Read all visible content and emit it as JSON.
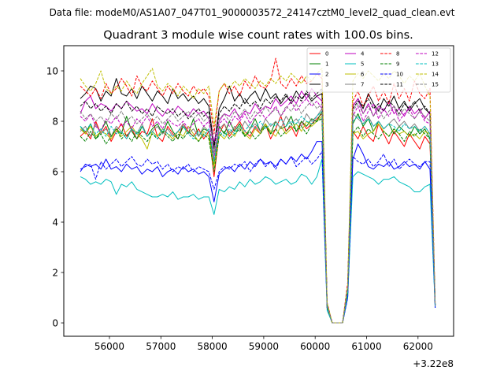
{
  "header": {
    "file_label": "Data file: modeM0/AS1A07_047T01_9000003572_24147cztM0_level2_quad_clean.evt"
  },
  "chart_data": {
    "type": "line",
    "title": "Quadrant 3 module wise count rates with 100.0s bins.",
    "xlabel": "",
    "ylabel": "",
    "x_offset_label": "+3.22e8",
    "xlim": [
      55112,
      62692
    ],
    "ylim": [
      -0.53,
      11.0
    ],
    "x_start": 55433,
    "x_step": 100,
    "xticks": [
      56000,
      57000,
      58000,
      59000,
      60000,
      61000,
      62000
    ],
    "yticks": [
      0,
      2,
      4,
      6,
      8,
      10
    ],
    "legend_position": "top-right",
    "grid": false,
    "series": [
      {
        "name": "0",
        "color": "#ff0000",
        "dash": false,
        "values": [
          7.4,
          7.6,
          7.3,
          8.0,
          7.5,
          7.8,
          7.2,
          7.6,
          7.9,
          7.4,
          7.7,
          7.3,
          7.6,
          7.5,
          8.1,
          7.4,
          7.2,
          7.8,
          7.5,
          7.3,
          7.9,
          7.6,
          7.4,
          7.7,
          7.3,
          7.6,
          5.8,
          7.5,
          7.9,
          7.4,
          7.7,
          8.0,
          7.6,
          7.4,
          7.8,
          7.5,
          7.9,
          7.3,
          7.7,
          8.2,
          7.6,
          7.8,
          7.4,
          8.0,
          7.7,
          7.9,
          8.1,
          8.3,
          0.6,
          0,
          0,
          0,
          1.2,
          7.6,
          7.3,
          7.8,
          7.4,
          7.2,
          7.9,
          7.5,
          7.1,
          7.6,
          7.3,
          7.0,
          7.5,
          7.2,
          6.9,
          7.4,
          7.1,
          0.7
        ]
      },
      {
        "name": "1",
        "color": "#008000",
        "dash": false,
        "values": [
          7.8,
          7.5,
          7.9,
          7.3,
          7.6,
          8.0,
          7.4,
          7.7,
          7.5,
          8.2,
          7.6,
          7.3,
          7.8,
          7.4,
          7.7,
          7.9,
          7.5,
          8.0,
          7.6,
          7.3,
          7.8,
          7.5,
          8.1,
          7.4,
          7.7,
          7.6,
          6.3,
          7.8,
          7.5,
          8.0,
          7.6,
          7.9,
          7.4,
          7.7,
          8.1,
          7.6,
          7.9,
          7.5,
          8.0,
          7.7,
          7.8,
          8.2,
          7.6,
          8.0,
          7.8,
          8.1,
          8.0,
          8.4,
          0.6,
          0,
          0,
          0,
          1.3,
          7.9,
          8.3,
          7.8,
          8.1,
          7.6,
          8.0,
          7.7,
          7.9,
          7.5,
          7.8,
          7.6,
          7.4,
          7.8,
          7.5,
          7.7,
          7.3,
          0.7
        ]
      },
      {
        "name": "2",
        "color": "#0000ff",
        "dash": false,
        "values": [
          6.0,
          6.3,
          6.2,
          6.3,
          6.1,
          6.5,
          6.1,
          6.2,
          6.0,
          6.3,
          6.1,
          6.2,
          5.9,
          6.1,
          6.0,
          6.2,
          5.8,
          6.0,
          6.1,
          5.9,
          6.2,
          6.0,
          6.1,
          5.9,
          6.0,
          5.8,
          4.8,
          5.9,
          6.1,
          6.2,
          6.0,
          6.3,
          6.1,
          6.4,
          6.2,
          6.5,
          6.3,
          6.4,
          6.2,
          6.5,
          6.3,
          6.6,
          6.4,
          6.7,
          6.5,
          6.8,
          7.2,
          7.2,
          0.6,
          0,
          0,
          0,
          1.0,
          6.5,
          7.1,
          6.7,
          6.2,
          6.1,
          6.3,
          6.2,
          6.4,
          6.1,
          6.2,
          6.4,
          6.2,
          6.3,
          6.1,
          6.4,
          6.1,
          0.6
        ]
      },
      {
        "name": "3",
        "color": "#000000",
        "dash": false,
        "values": [
          8.9,
          9.1,
          9.4,
          9.3,
          8.8,
          9.2,
          9.0,
          9.7,
          9.1,
          9.0,
          9.3,
          8.9,
          9.4,
          9.1,
          8.8,
          9.2,
          9.0,
          8.7,
          9.3,
          8.9,
          9.1,
          8.8,
          9.0,
          8.7,
          8.9,
          8.6,
          7.0,
          8.5,
          8.9,
          9.4,
          8.8,
          9.1,
          8.7,
          9.0,
          9.2,
          8.8,
          9.3,
          8.9,
          9.1,
          8.7,
          9.0,
          8.8,
          9.2,
          8.9,
          9.1,
          8.8,
          9.0,
          9.1,
          0.7,
          0,
          0,
          0,
          1.4,
          8.6,
          8.9,
          8.5,
          9.1,
          8.7,
          8.4,
          8.9,
          8.6,
          9.0,
          8.5,
          8.8,
          8.4,
          8.7,
          8.9,
          8.5,
          8.3,
          0.7
        ]
      },
      {
        "name": "4",
        "color": "#bf00bf",
        "dash": false,
        "values": [
          8.3,
          8.8,
          9.0,
          8.5,
          8.7,
          8.6,
          8.4,
          8.7,
          8.5,
          8.8,
          8.6,
          8.4,
          8.5,
          8.3,
          8.7,
          8.4,
          8.2,
          8.5,
          8.3,
          8.6,
          8.4,
          8.2,
          8.5,
          8.3,
          8.4,
          8.1,
          7.2,
          8.0,
          8.3,
          8.2,
          8.5,
          8.1,
          8.4,
          8.3,
          8.7,
          8.4,
          8.6,
          8.5,
          8.9,
          8.6,
          8.8,
          9.0,
          8.7,
          9.2,
          8.9,
          9.3,
          9.0,
          8.8,
          0.7,
          0,
          0,
          0,
          1.3,
          8.6,
          8.9,
          8.3,
          8.7,
          8.2,
          8.6,
          8.4,
          8.8,
          8.3,
          8.5,
          8.2,
          8.6,
          8.3,
          8.5,
          8.1,
          8.4,
          0.7
        ]
      },
      {
        "name": "5",
        "color": "#00bfbf",
        "dash": false,
        "values": [
          5.8,
          5.7,
          5.5,
          5.6,
          5.5,
          5.7,
          5.6,
          5.1,
          5.5,
          5.4,
          5.6,
          5.3,
          5.2,
          5.1,
          5.0,
          5.0,
          5.1,
          5.0,
          5.2,
          4.9,
          5.0,
          5.0,
          5.1,
          4.9,
          5.0,
          5.0,
          4.3,
          5.3,
          5.2,
          5.4,
          5.3,
          5.6,
          5.4,
          5.7,
          5.5,
          5.6,
          5.8,
          5.7,
          5.5,
          5.6,
          5.7,
          5.5,
          5.6,
          5.9,
          5.8,
          5.5,
          5.8,
          6.5,
          0.5,
          0,
          0,
          0,
          1.0,
          5.8,
          6.0,
          5.9,
          5.8,
          5.7,
          5.5,
          5.7,
          5.7,
          5.8,
          5.6,
          5.5,
          5.4,
          5.2,
          5.2,
          5.4,
          5.5,
          0.6
        ]
      },
      {
        "name": "6",
        "color": "#bfbf00",
        "dash": false,
        "values": [
          7.7,
          7.5,
          7.8,
          7.4,
          7.6,
          7.5,
          7.3,
          7.7,
          7.4,
          7.6,
          7.8,
          7.5,
          7.3,
          6.9,
          7.6,
          7.4,
          7.7,
          7.5,
          7.3,
          7.6,
          7.4,
          7.8,
          7.5,
          7.2,
          7.6,
          7.4,
          6.2,
          7.5,
          7.3,
          7.6,
          7.4,
          7.8,
          7.5,
          7.3,
          7.7,
          7.5,
          7.9,
          7.6,
          7.4,
          7.8,
          7.5,
          7.7,
          7.9,
          7.6,
          8.0,
          7.8,
          8.0,
          8.2,
          0.6,
          0,
          0,
          0,
          1.2,
          7.5,
          7.6,
          7.3,
          7.5,
          7.6,
          7.9,
          7.6,
          7.4,
          7.7,
          7.5,
          7.6,
          7.4,
          7.5,
          7.3,
          7.6,
          7.5,
          0.7
        ]
      },
      {
        "name": "7",
        "color": "#808080",
        "dash": false,
        "values": [
          7.6,
          7.8,
          7.4,
          7.9,
          7.5,
          7.7,
          7.4,
          7.8,
          7.6,
          7.3,
          7.7,
          7.5,
          7.9,
          7.4,
          7.6,
          7.8,
          7.5,
          7.7,
          7.4,
          7.6,
          7.9,
          7.5,
          7.7,
          7.4,
          7.8,
          7.6,
          6.7,
          7.7,
          7.9,
          7.5,
          7.8,
          7.6,
          8.0,
          7.7,
          7.9,
          7.6,
          8.1,
          7.8,
          8.0,
          7.7,
          8.2,
          7.9,
          8.1,
          7.8,
          8.3,
          8.0,
          8.2,
          8.5,
          0.7,
          0,
          0,
          0,
          1.4,
          8.3,
          8.1,
          7.9,
          8.2,
          7.8,
          8.0,
          7.7,
          7.9,
          8.1,
          7.8,
          8.0,
          7.7,
          7.9,
          7.6,
          7.8,
          7.5,
          0.7
        ]
      },
      {
        "name": "8",
        "color": "#ff0000",
        "dash": true,
        "values": [
          9.4,
          9.2,
          9.0,
          9.3,
          8.9,
          9.5,
          9.1,
          9.3,
          9.7,
          9.4,
          9.0,
          9.8,
          9.4,
          9.2,
          9.6,
          9.3,
          9.0,
          9.4,
          9.1,
          9.5,
          9.2,
          9.0,
          9.4,
          9.1,
          9.3,
          9.0,
          7.5,
          9.2,
          9.5,
          9.1,
          9.4,
          9.0,
          9.6,
          9.3,
          9.8,
          9.4,
          9.3,
          9.6,
          10.5,
          9.5,
          9.3,
          9.7,
          9.4,
          9.8,
          9.5,
          9.6,
          9.9,
          9.7,
          0.8,
          0,
          0,
          0,
          1.6,
          8.8,
          9.2,
          8.6,
          9.0,
          9.4,
          8.8,
          9.2,
          8.7,
          9.5,
          8.9,
          9.3,
          8.8,
          9.6,
          9.1,
          8.9,
          9.3,
          0.8
        ]
      },
      {
        "name": "9",
        "color": "#008000",
        "dash": true,
        "values": [
          7.4,
          7.2,
          7.6,
          7.3,
          7.5,
          7.1,
          7.4,
          7.7,
          7.3,
          7.5,
          7.2,
          7.6,
          7.4,
          7.2,
          7.5,
          7.3,
          7.6,
          7.4,
          7.2,
          7.5,
          7.3,
          7.6,
          7.4,
          7.2,
          7.5,
          7.3,
          6.0,
          7.4,
          7.6,
          7.3,
          7.5,
          7.7,
          7.4,
          7.6,
          7.3,
          7.5,
          7.8,
          7.5,
          7.7,
          7.4,
          7.6,
          7.9,
          7.6,
          7.8,
          7.5,
          7.9,
          8.0,
          8.1,
          0.6,
          0,
          0,
          0,
          1.2,
          7.5,
          7.8,
          7.4,
          7.7,
          7.5,
          7.3,
          7.6,
          7.4,
          7.7,
          7.5,
          7.2,
          7.6,
          7.4,
          7.7,
          7.5,
          7.3,
          0.7
        ]
      },
      {
        "name": "10",
        "color": "#0000ff",
        "dash": true,
        "values": [
          6.1,
          6.2,
          6.3,
          5.7,
          6.4,
          6.1,
          6.3,
          6.5,
          6.2,
          6.4,
          6.6,
          6.3,
          6.2,
          6.5,
          6.3,
          6.4,
          6.1,
          6.3,
          6.0,
          6.2,
          6.1,
          6.3,
          6.0,
          6.2,
          6.1,
          6.0,
          5.3,
          6.0,
          6.2,
          6.1,
          6.3,
          6.2,
          6.4,
          6.0,
          6.3,
          6.5,
          6.2,
          6.4,
          6.1,
          6.5,
          6.3,
          6.6,
          6.2,
          6.4,
          6.6,
          6.3,
          6.5,
          6.8,
          0.6,
          0,
          0,
          0,
          1.0,
          6.6,
          6.4,
          6.3,
          6.5,
          6.2,
          6.4,
          6.7,
          6.2,
          6.5,
          6.1,
          6.3,
          6.5,
          6.3,
          6.2,
          6.4,
          6.4,
          0.6
        ]
      },
      {
        "name": "11",
        "color": "#000000",
        "dash": true,
        "values": [
          8.6,
          8.8,
          8.5,
          8.7,
          8.4,
          8.6,
          8.3,
          8.7,
          8.5,
          8.8,
          8.4,
          8.6,
          8.3,
          8.5,
          8.2,
          8.6,
          8.4,
          8.3,
          8.5,
          8.2,
          8.4,
          8.1,
          8.3,
          8.5,
          8.2,
          8.4,
          6.9,
          8.3,
          8.6,
          8.4,
          8.7,
          8.5,
          8.9,
          8.6,
          8.8,
          8.5,
          8.9,
          8.7,
          9.0,
          8.8,
          9.1,
          8.7,
          9.0,
          8.8,
          9.2,
          8.9,
          9.1,
          9.3,
          0.7,
          0,
          0,
          0,
          1.4,
          8.5,
          8.8,
          8.6,
          8.9,
          8.5,
          8.7,
          8.4,
          8.8,
          8.6,
          8.3,
          8.7,
          8.5,
          8.8,
          8.4,
          8.6,
          8.3,
          0.7
        ]
      },
      {
        "name": "12",
        "color": "#bf00bf",
        "dash": true,
        "values": [
          8.2,
          8.0,
          8.3,
          7.8,
          7.6,
          8.1,
          7.9,
          8.2,
          7.8,
          8.0,
          7.7,
          8.1,
          7.9,
          8.2,
          7.8,
          8.0,
          7.7,
          8.1,
          7.9,
          7.8,
          8.0,
          7.7,
          7.9,
          8.1,
          7.8,
          8.0,
          6.5,
          7.9,
          8.1,
          7.8,
          8.2,
          8.0,
          8.3,
          7.9,
          8.2,
          8.4,
          8.1,
          8.3,
          8.6,
          8.2,
          8.5,
          8.8,
          8.4,
          8.7,
          8.9,
          8.6,
          8.8,
          8.5,
          0.6,
          0,
          0,
          0,
          1.3,
          8.2,
          8.6,
          8.0,
          8.4,
          8.7,
          8.1,
          8.5,
          8.2,
          8.6,
          8.0,
          8.3,
          8.5,
          8.1,
          8.4,
          8.0,
          7.9,
          0.7
        ]
      },
      {
        "name": "13",
        "color": "#00bfbf",
        "dash": true,
        "values": [
          7.8,
          7.6,
          7.9,
          7.5,
          7.7,
          7.4,
          7.8,
          7.5,
          7.6,
          7.3,
          7.7,
          7.5,
          7.8,
          7.4,
          7.6,
          7.3,
          7.7,
          7.5,
          7.4,
          7.6,
          7.8,
          7.5,
          7.3,
          7.6,
          7.4,
          7.7,
          6.4,
          7.6,
          7.4,
          7.7,
          7.5,
          7.8,
          7.6,
          7.9,
          7.7,
          8.0,
          7.7,
          7.9,
          7.8,
          8.1,
          7.8,
          8.0,
          7.9,
          8.2,
          8.0,
          7.9,
          8.2,
          8.4,
          0.6,
          0,
          0,
          0,
          1.2,
          8.0,
          8.2,
          7.9,
          8.1,
          7.8,
          8.0,
          7.7,
          7.9,
          7.8,
          7.6,
          7.9,
          7.7,
          7.8,
          7.6,
          7.8,
          7.5,
          0.7
        ]
      },
      {
        "name": "14",
        "color": "#bfbf00",
        "dash": true,
        "values": [
          9.7,
          9.4,
          9.2,
          9.5,
          10.0,
          9.3,
          9.1,
          9.4,
          9.2,
          9.6,
          9.3,
          9.1,
          9.5,
          9.8,
          10.1,
          9.4,
          9.2,
          9.5,
          9.3,
          9.0,
          9.4,
          9.2,
          8.9,
          9.3,
          9.1,
          9.4,
          7.8,
          9.2,
          9.5,
          9.3,
          9.6,
          9.4,
          9.7,
          9.5,
          9.3,
          9.6,
          9.4,
          9.7,
          9.5,
          9.8,
          9.6,
          9.9,
          9.7,
          9.5,
          9.8,
          9.6,
          9.9,
          10.1,
          0.8,
          0,
          0,
          0,
          1.5,
          9.6,
          9.9,
          9.7,
          10.0,
          9.8,
          9.6,
          9.9,
          9.7,
          10.0,
          9.8,
          9.5,
          9.8,
          9.6,
          9.9,
          9.4,
          9.0,
          0.8
        ]
      },
      {
        "name": "15",
        "color": "#808080",
        "dash": true,
        "values": [
          8.4,
          8.1,
          8.3,
          8.0,
          8.2,
          7.9,
          8.3,
          8.1,
          8.4,
          8.0,
          8.2,
          7.9,
          8.1,
          8.3,
          8.0,
          8.2,
          7.9,
          8.1,
          8.3,
          8.0,
          8.2,
          8.4,
          8.1,
          8.3,
          8.0,
          8.2,
          6.8,
          8.1,
          8.3,
          8.0,
          8.4,
          8.2,
          8.5,
          8.1,
          8.4,
          8.2,
          8.6,
          8.3,
          8.5,
          8.2,
          8.6,
          8.4,
          8.7,
          8.3,
          8.6,
          8.8,
          8.5,
          8.7,
          0.7,
          0,
          0,
          0,
          1.4,
          8.4,
          8.7,
          8.3,
          8.6,
          8.2,
          8.5,
          8.1,
          8.4,
          8.6,
          8.2,
          8.5,
          8.3,
          8.1,
          8.4,
          8.2,
          8.0,
          0.7
        ]
      }
    ]
  }
}
